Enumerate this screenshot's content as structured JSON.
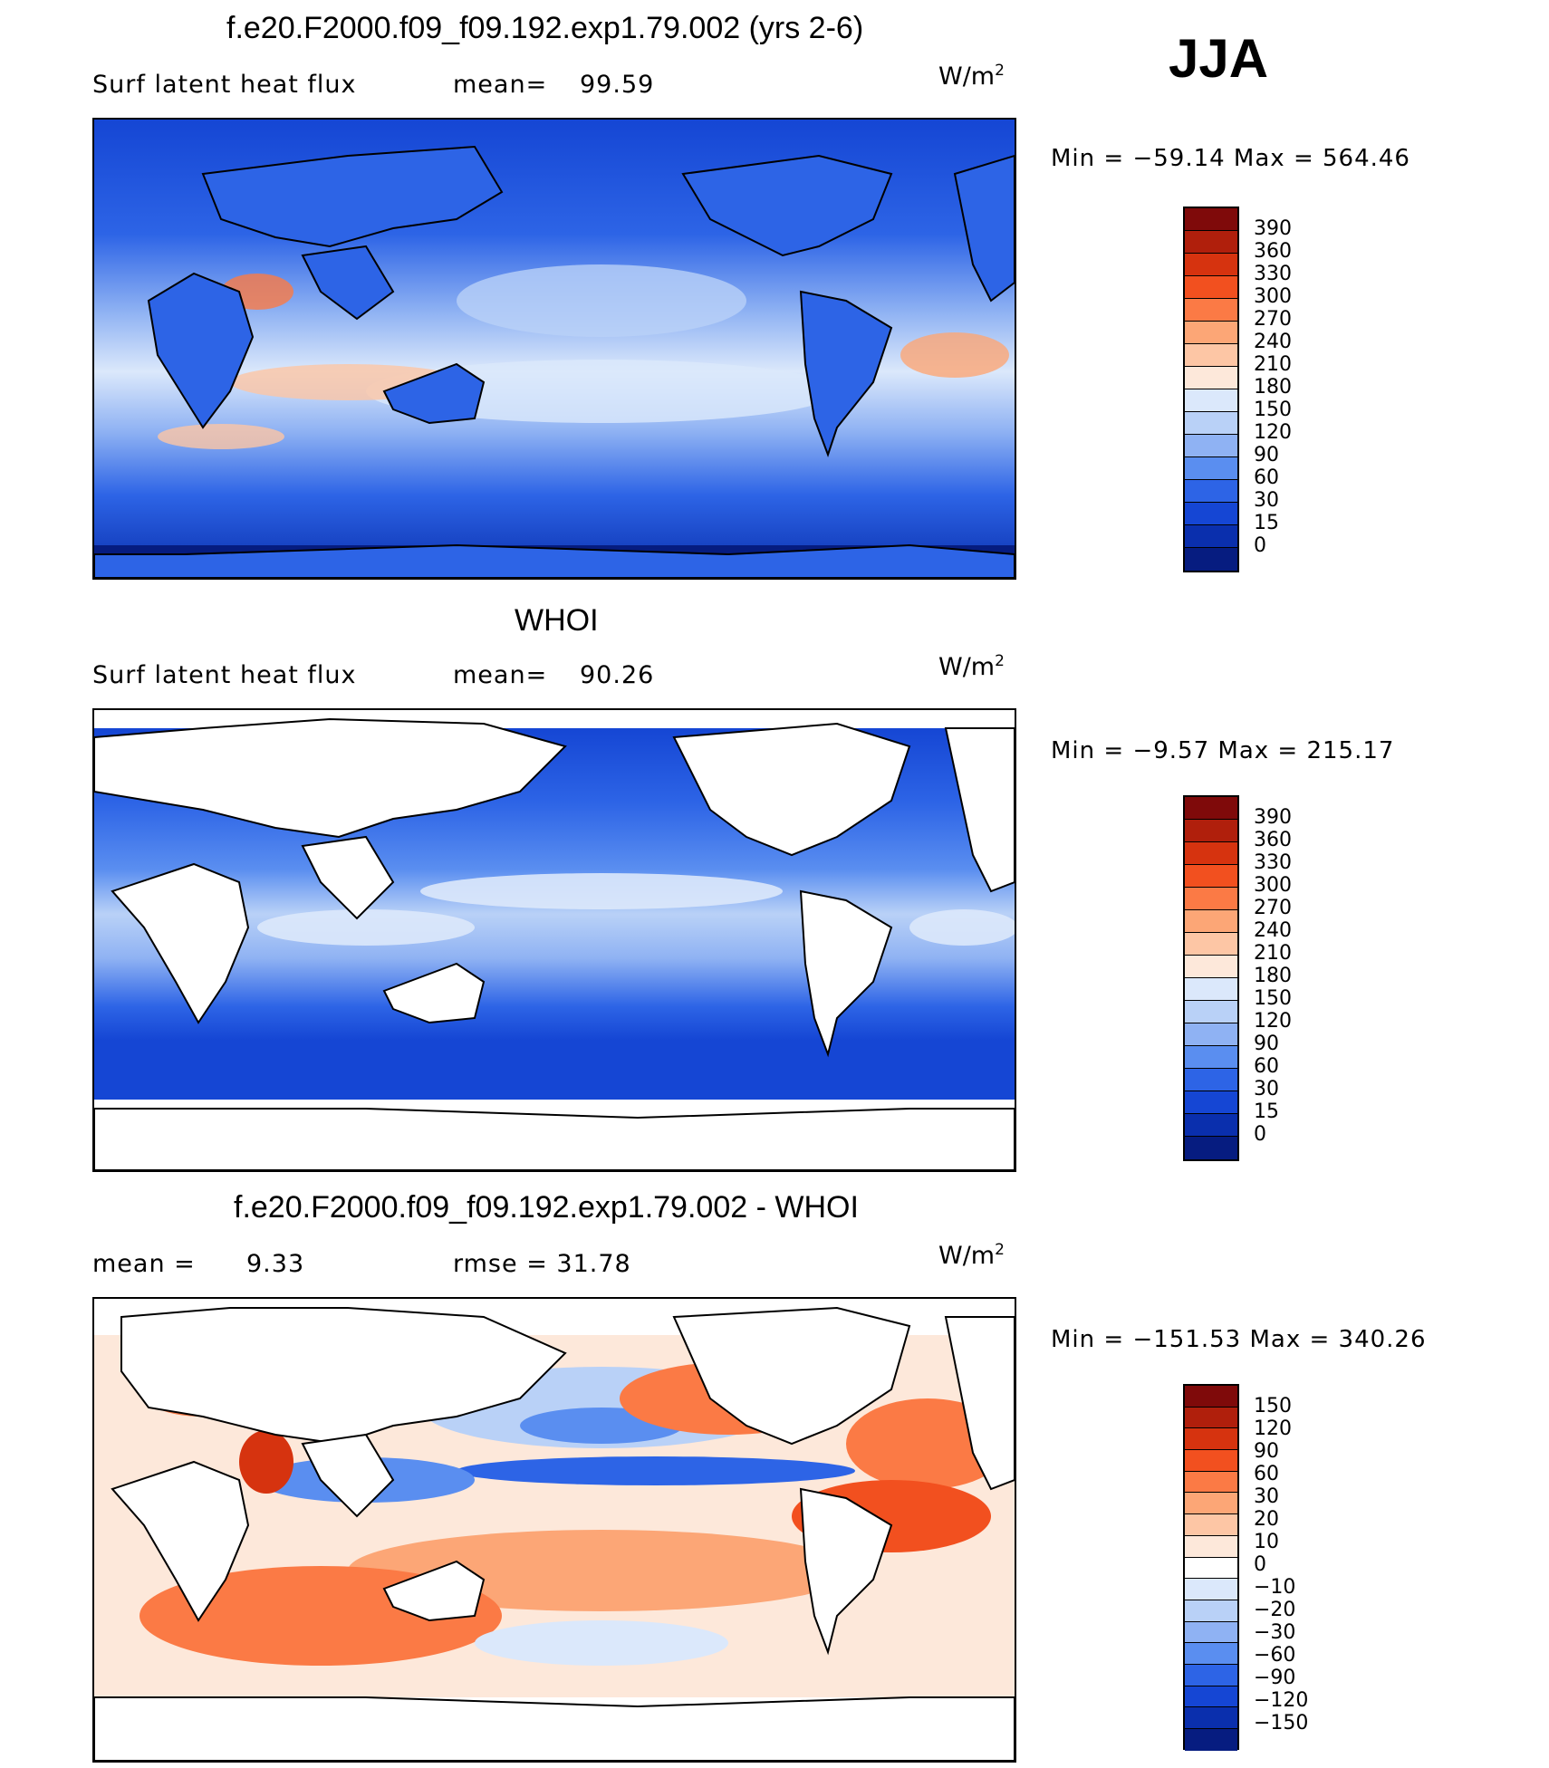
{
  "header": {
    "season": "JJA"
  },
  "panels": [
    {
      "title": "f.e20.F2000.f09_f09.192.exp1.79.002 (yrs 2-6)",
      "subtitle": "Surf latent heat flux",
      "stat_label": "mean=",
      "stat_value": "99.59",
      "units_base": "W/m",
      "units_exp": "2",
      "minmax": "Min = −59.14 Max = 564.46",
      "colorbar": {
        "labels": [
          "390",
          "360",
          "330",
          "300",
          "270",
          "240",
          "210",
          "180",
          "150",
          "120",
          "90",
          "60",
          "30",
          "15",
          "0"
        ],
        "colors": [
          "#7f0a0a",
          "#b01f0c",
          "#d6330f",
          "#f2501f",
          "#fb7a45",
          "#fca676",
          "#fdc6a5",
          "#fde8da",
          "#dbe8fb",
          "#b9d1f7",
          "#8fb2f3",
          "#5a8ef0",
          "#2d64e6",
          "#1546d4",
          "#0a2fad",
          "#061c80"
        ]
      },
      "map_palette": "fld1"
    },
    {
      "title": "WHOI",
      "subtitle": "Surf latent heat flux",
      "stat_label": "mean=",
      "stat_value": "90.26",
      "units_base": "W/m",
      "units_exp": "2",
      "minmax": "Min = −9.57 Max = 215.17",
      "colorbar": {
        "labels": [
          "390",
          "360",
          "330",
          "300",
          "270",
          "240",
          "210",
          "180",
          "150",
          "120",
          "90",
          "60",
          "30",
          "15",
          "0"
        ],
        "colors": [
          "#7f0a0a",
          "#b01f0c",
          "#d6330f",
          "#f2501f",
          "#fb7a45",
          "#fca676",
          "#fdc6a5",
          "#fde8da",
          "#dbe8fb",
          "#b9d1f7",
          "#8fb2f3",
          "#5a8ef0",
          "#2d64e6",
          "#1546d4",
          "#0a2fad",
          "#061c80"
        ]
      },
      "map_palette": "fld2"
    },
    {
      "title": "f.e20.F2000.f09_f09.192.exp1.79.002 - WHOI",
      "subtitle": "mean =",
      "stat_label": "9.33",
      "stat_value": "rmse = 31.78",
      "units_base": "W/m",
      "units_exp": "2",
      "minmax": "Min = −151.53 Max = 340.26",
      "colorbar": {
        "labels": [
          "150",
          "120",
          "90",
          "60",
          "30",
          "20",
          "10",
          "0",
          "−10",
          "−20",
          "−30",
          "−60",
          "−90",
          "−120",
          "−150"
        ],
        "colors": [
          "#7f0a0a",
          "#b01f0c",
          "#d6330f",
          "#f2501f",
          "#fb7a45",
          "#fca676",
          "#fdc6a5",
          "#fde8da",
          "#ffffff",
          "#dbe8fb",
          "#b9d1f7",
          "#8fb2f3",
          "#5a8ef0",
          "#2d64e6",
          "#1546d4",
          "#0a2fad",
          "#061c80"
        ]
      },
      "map_palette": "diff"
    }
  ]
}
